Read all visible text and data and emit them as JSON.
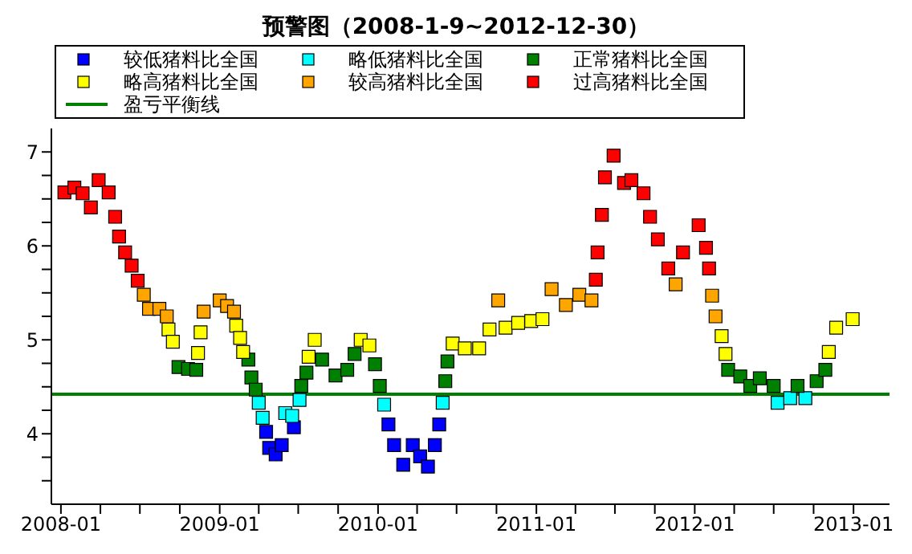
{
  "chart_data": {
    "type": "scatter",
    "title": "预警图（2008-1-9~2012-12-30）",
    "marker": "square",
    "legend": "top",
    "xlim": [
      "2007-12-10",
      "2013-03-25"
    ],
    "xticks": [
      "2008-01",
      {
        "value": "2008-04",
        "label": null
      },
      {
        "value": "2008-07",
        "label": null
      },
      {
        "value": "2008-10",
        "label": null
      },
      "2009-01",
      {
        "value": "2009-04",
        "label": null
      },
      {
        "value": "2009-07",
        "label": null
      },
      {
        "value": "2009-10",
        "label": null
      },
      "2010-01",
      {
        "value": "2010-04",
        "label": null
      },
      {
        "value": "2010-07",
        "label": null
      },
      {
        "value": "2010-10",
        "label": null
      },
      "2011-01",
      {
        "value": "2011-04",
        "label": null
      },
      {
        "value": "2011-07",
        "label": null
      },
      {
        "value": "2011-10",
        "label": null
      },
      "2012-01",
      {
        "value": "2012-04",
        "label": null
      },
      {
        "value": "2012-07",
        "label": null
      },
      {
        "value": "2012-10",
        "label": null
      },
      "2013-01"
    ],
    "ylim": [
      3.25,
      7.25
    ],
    "yticks": [
      {
        "value": 3.5,
        "label": null
      },
      {
        "value": 3.75,
        "label": null
      },
      4,
      {
        "value": 4.25,
        "label": null
      },
      {
        "value": 4.5,
        "label": null
      },
      {
        "value": 4.75,
        "label": null
      },
      5,
      {
        "value": 5.25,
        "label": null
      },
      {
        "value": 5.5,
        "label": null
      },
      {
        "value": 5.75,
        "label": null
      },
      6,
      {
        "value": 6.25,
        "label": null
      },
      {
        "value": 6.5,
        "label": null
      },
      {
        "value": 6.75,
        "label": null
      },
      7
    ],
    "ref_lines": [
      {
        "axis": "y",
        "value": 4.42,
        "label": "盈亏平衡线",
        "color": "#008000"
      }
    ],
    "series": [
      {
        "name": "较低猪料比全国",
        "color": "#0000ff",
        "x": [
          "2009-04-18",
          "2009-04-25",
          "2009-05-10",
          "2009-05-24",
          "2009-06-21",
          "2010-01-25",
          "2010-02-07",
          "2010-02-28",
          "2010-03-22",
          "2010-04-08",
          "2010-04-26",
          "2010-05-12",
          "2010-05-22"
        ],
        "values": [
          4.02,
          3.85,
          3.78,
          3.88,
          4.07,
          4.1,
          3.88,
          3.67,
          3.88,
          3.76,
          3.65,
          3.88,
          4.1
        ]
      },
      {
        "name": "略低猪料比全国",
        "color": "#00ffff",
        "x": [
          "2009-04-01",
          "2009-04-10",
          "2009-06-01",
          "2009-06-17",
          "2009-07-04",
          "2010-01-15",
          "2010-05-30",
          "2012-07-10",
          "2012-08-08",
          "2012-09-12"
        ],
        "values": [
          4.33,
          4.17,
          4.22,
          4.19,
          4.36,
          4.31,
          4.33,
          4.33,
          4.38,
          4.38
        ]
      },
      {
        "name": "正常猪料比全国",
        "color": "#008000",
        "x": [
          "2008-09-28",
          "2008-10-20",
          "2008-11-08",
          "2009-03-08",
          "2009-03-15",
          "2009-03-25",
          "2009-07-08",
          "2009-07-20",
          "2009-08-25",
          "2009-09-25",
          "2009-10-22",
          "2009-11-08",
          "2009-12-25",
          "2010-01-05",
          "2010-06-05",
          "2010-06-10",
          "2012-03-18",
          "2012-04-15",
          "2012-05-08",
          "2012-05-30",
          "2012-07-01",
          "2012-08-25",
          "2012-10-08",
          "2012-10-28"
        ],
        "values": [
          4.71,
          4.69,
          4.68,
          4.79,
          4.6,
          4.47,
          4.51,
          4.65,
          4.79,
          4.62,
          4.68,
          4.85,
          4.74,
          4.51,
          4.56,
          4.77,
          4.68,
          4.61,
          4.51,
          4.59,
          4.51,
          4.51,
          4.56,
          4.68
        ]
      },
      {
        "name": "略高猪料比全国",
        "color": "#ffff00",
        "x": [
          "2008-09-05",
          "2008-09-15",
          "2008-11-12",
          "2008-11-18",
          "2009-02-08",
          "2009-02-17",
          "2009-02-24",
          "2009-07-25",
          "2009-08-08",
          "2009-11-22",
          "2009-12-12",
          "2010-06-22",
          "2010-07-20",
          "2010-08-22",
          "2010-09-15",
          "2010-10-22",
          "2010-11-20",
          "2010-12-20",
          "2011-01-15",
          "2012-03-03",
          "2012-03-12",
          "2012-11-05",
          "2012-11-22",
          "2012-12-30"
        ],
        "values": [
          5.11,
          4.98,
          4.86,
          5.08,
          5.15,
          5.02,
          4.87,
          4.82,
          5.0,
          5.0,
          4.94,
          4.96,
          4.91,
          4.91,
          5.11,
          5.13,
          5.18,
          5.2,
          5.22,
          5.04,
          4.85,
          4.87,
          5.13,
          5.22
        ]
      },
      {
        "name": "较高猪料比全国",
        "color": "#ffa500",
        "x": [
          "2008-07-10",
          "2008-07-22",
          "2008-08-15",
          "2008-09-01",
          "2008-11-25",
          "2009-01-01",
          "2009-01-18",
          "2009-02-03",
          "2010-10-05",
          "2011-02-05",
          "2011-03-10",
          "2011-04-10",
          "2011-05-08",
          "2011-11-18",
          "2012-02-10",
          "2012-02-18"
        ],
        "values": [
          5.48,
          5.33,
          5.33,
          5.25,
          5.3,
          5.42,
          5.36,
          5.3,
          5.42,
          5.54,
          5.37,
          5.48,
          5.42,
          5.59,
          5.47,
          5.25
        ]
      },
      {
        "name": "过高猪料比全国",
        "color": "#ff0000",
        "x": [
          "2008-01-09",
          "2008-02-01",
          "2008-02-20",
          "2008-03-10",
          "2008-03-28",
          "2008-04-20",
          "2008-05-05",
          "2008-05-14",
          "2008-05-28",
          "2008-06-12",
          "2008-06-26",
          "2011-05-18",
          "2011-05-22",
          "2011-06-01",
          "2011-06-08",
          "2011-06-28",
          "2011-07-22",
          "2011-08-08",
          "2011-09-05",
          "2011-09-20",
          "2011-10-08",
          "2011-11-01",
          "2011-12-05",
          "2012-01-10",
          "2012-01-27",
          "2012-02-03"
        ],
        "values": [
          6.57,
          6.62,
          6.56,
          6.41,
          6.7,
          6.57,
          6.31,
          6.1,
          5.93,
          5.79,
          5.63,
          5.64,
          5.93,
          6.33,
          6.73,
          6.96,
          6.67,
          6.7,
          6.56,
          6.31,
          6.07,
          5.76,
          5.93,
          6.22,
          5.98,
          5.76
        ]
      }
    ]
  }
}
